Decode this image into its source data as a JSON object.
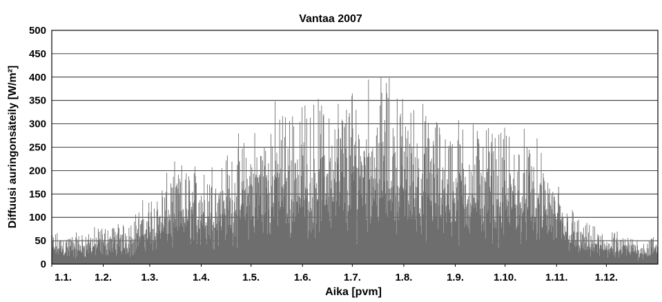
{
  "chart_data": {
    "type": "bar",
    "title": "Vantaa 2007",
    "xlabel": "Aika [pvm]",
    "ylabel": "Diffuusi auringonsäteily [W/m²]",
    "ylim": [
      0,
      500
    ],
    "yticks": [
      0,
      50,
      100,
      150,
      200,
      250,
      300,
      350,
      400,
      450,
      500
    ],
    "xticks": [
      "1.1.",
      "1.2.",
      "1.3.",
      "1.4.",
      "1.5.",
      "1.6.",
      "1.7.",
      "1.8.",
      "1.9.",
      "1.10.",
      "1.11.",
      "1.12."
    ],
    "grid": true,
    "series": [
      {
        "categories": [
          "1.1.",
          "1.2.",
          "1.3.",
          "1.4.",
          "1.5.",
          "1.6.",
          "1.7.",
          "1.8.",
          "1.9.",
          "1.10.",
          "1.11.",
          "1.12."
        ],
        "values": [
          75,
          105,
          228,
          265,
          370,
          390,
          445,
          355,
          335,
          300,
          95,
          65
        ]
      }
    ],
    "colors": {
      "bars": "#6e6e6e",
      "grid": "#000000"
    }
  }
}
